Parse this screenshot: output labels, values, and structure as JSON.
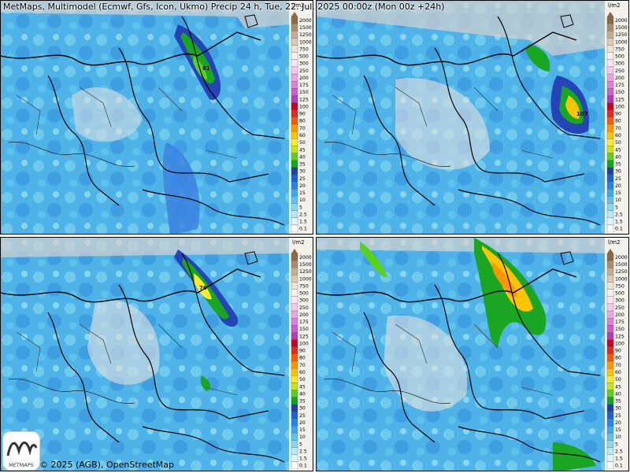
{
  "title": "MetMaps, Multimodel (Ecmwf, Gfs, Icon, Ukmo) Precip 24 h, Tue, 22. Jul. 2025 00:00z (Mon 00z +24h)",
  "footer": "© 2025 (AGB), OpenStreetMap",
  "logo_text": "METMAPS",
  "legend": {
    "unit": "l/m2",
    "levels": [
      "2000",
      "1500",
      "1250",
      "1000",
      "750",
      "500",
      "300",
      "250",
      "200",
      "175",
      "150",
      "125",
      "100",
      "90",
      "80",
      "70",
      "60",
      "50",
      "45",
      "40",
      "35",
      "30",
      "25",
      "20",
      "15",
      "10",
      "5",
      "2.5",
      "1.5",
      "0.1"
    ],
    "colors": [
      "#8b6a4a",
      "#a88e6f",
      "#c2ae94",
      "#d8cab7",
      "#ebe3d6",
      "#f8f1e9",
      "#fbe3f7",
      "#f5c8f0",
      "#eba5e6",
      "#df80da",
      "#d05ccd",
      "#bb3ab8",
      "#cc0020",
      "#e8281a",
      "#ff5a00",
      "#ff9600",
      "#ffc400",
      "#ffeb2b",
      "#c8e617",
      "#5ad21c",
      "#14a61a",
      "#1d3fa8",
      "#1c5fd8",
      "#1f86ef",
      "#3aa9f0",
      "#5bc3ee",
      "#86d8f0",
      "#b6e9f6",
      "#def6fb",
      "#f6fcfe"
    ]
  },
  "panels": [
    {
      "id": "top-left",
      "peak_label": "81"
    },
    {
      "id": "top-right",
      "peak_label": "107"
    },
    {
      "id": "bottom-left",
      "peak_label": "76"
    },
    {
      "id": "bottom-right",
      "peak_label": ""
    }
  ]
}
